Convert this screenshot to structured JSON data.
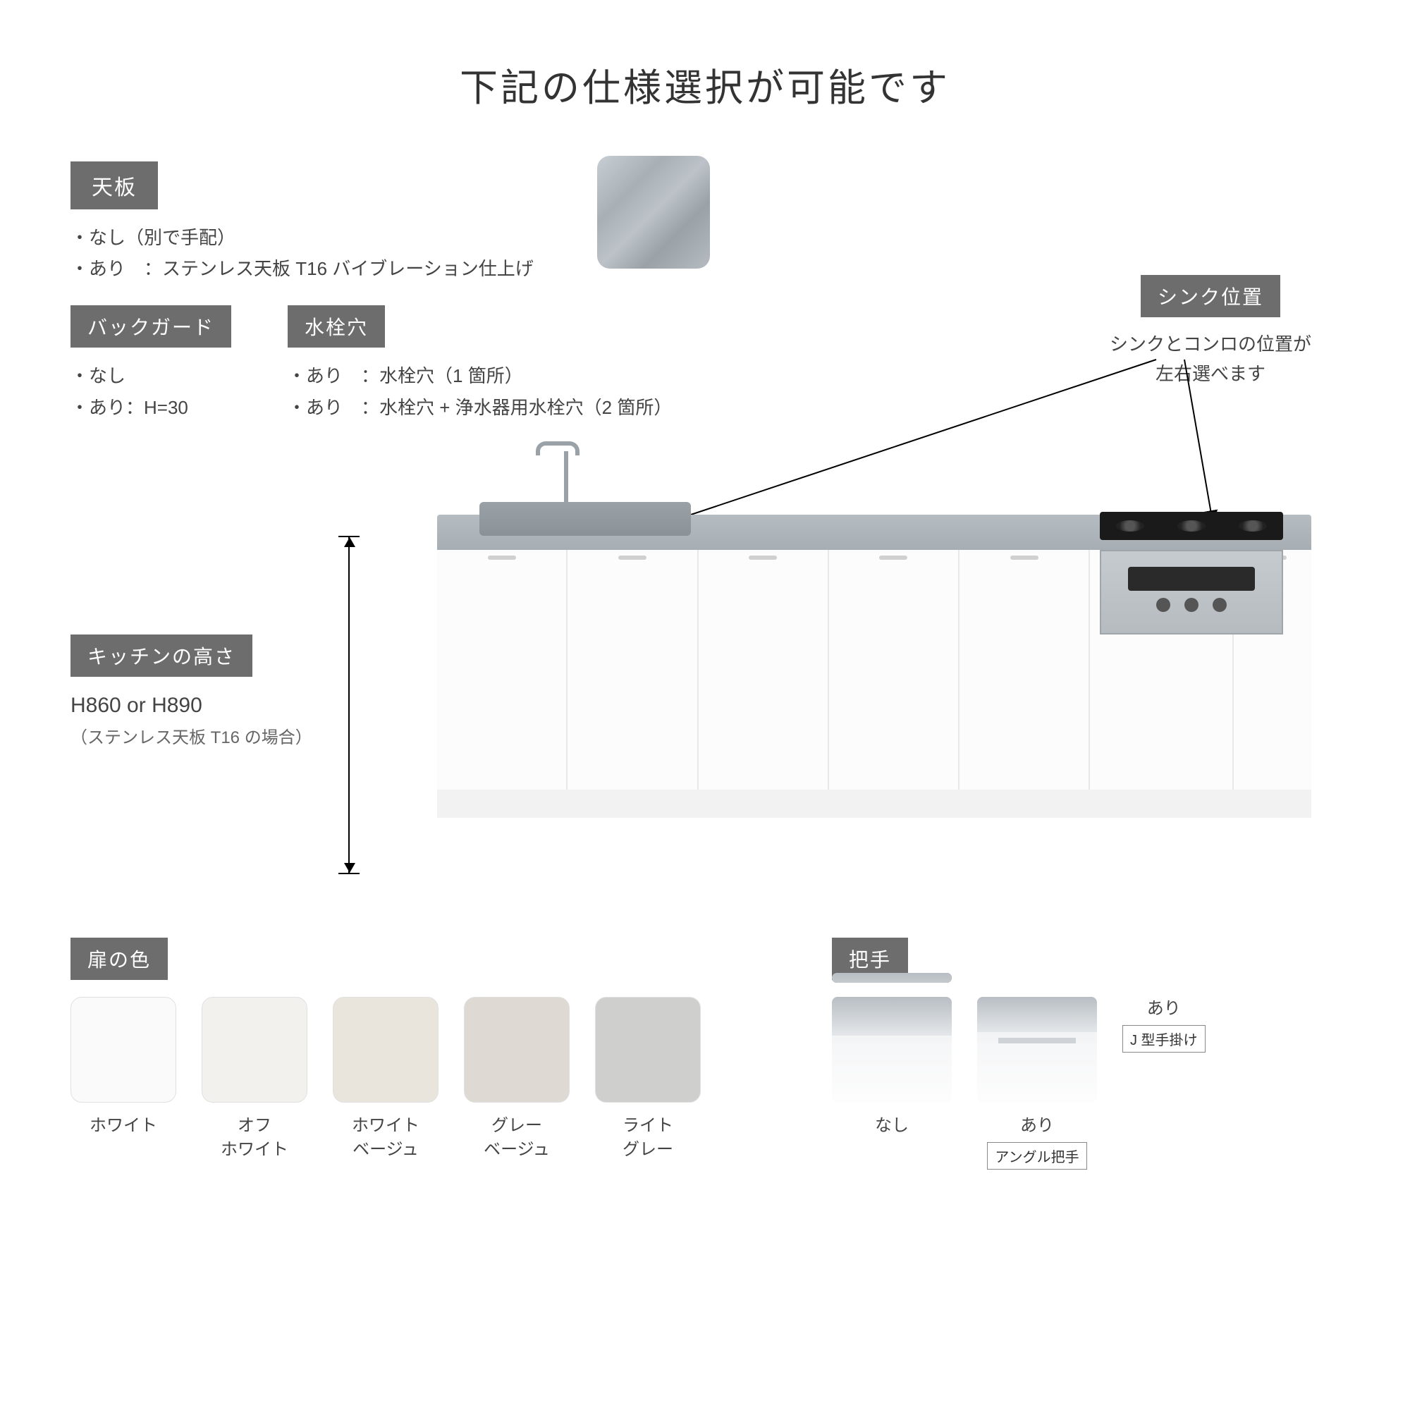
{
  "title": "下記の仕様選択が可能です",
  "countertop": {
    "tag": "天板",
    "options": [
      "なし（別で手配）",
      "あり　：ステンレス天板 T16 バイブレーション仕上げ"
    ],
    "swatch_gradient": [
      "#c8ced3",
      "#a8b0b6",
      "#bcc2c8",
      "#9aa2a8",
      "#b5bbc1"
    ]
  },
  "backguard": {
    "tag": "バックガード",
    "options": [
      "なし",
      "あり：H=30"
    ]
  },
  "faucet_hole": {
    "tag": "水栓穴",
    "options": [
      "あり　：水栓穴（1 箇所）",
      "あり　：水栓穴 + 浄水器用水栓穴（2 箇所）"
    ]
  },
  "sink_position": {
    "tag": "シンク位置",
    "desc_line1": "シンクとコンロの位置が",
    "desc_line2": "左右選べます"
  },
  "kitchen_height": {
    "tag": "キッチンの高さ",
    "value": "H860 or H890",
    "note": "（ステンレス天板 T16 の場合）"
  },
  "door_color": {
    "tag": "扉の色",
    "swatches": [
      {
        "label_line1": "ホワイト",
        "label_line2": "",
        "hex": "#fafafa"
      },
      {
        "label_line1": "オフ",
        "label_line2": "ホワイト",
        "hex": "#f3f1ee"
      },
      {
        "label_line1": "ホワイト",
        "label_line2": "ベージュ",
        "hex": "#e9e5dd"
      },
      {
        "label_line1": "グレー",
        "label_line2": "ベージュ",
        "hex": "#dedad3"
      },
      {
        "label_line1": "ライト",
        "label_line2": "グレー",
        "hex": "#cfcfcd"
      }
    ]
  },
  "handle": {
    "tag": "把手",
    "options": [
      {
        "variant": "none",
        "label": "なし",
        "sublabel": ""
      },
      {
        "variant": "angle",
        "label": "あり",
        "sublabel": "アングル把手"
      },
      {
        "variant": "j",
        "label": "あり",
        "sublabel": "J 型手掛け"
      }
    ]
  },
  "colors": {
    "tag_bg": "#6d6d6d",
    "tag_fg": "#ffffff",
    "text": "#444444",
    "muted": "#666666",
    "border": "#888888",
    "steel": "#b5bcc2",
    "cabinet": "#fcfcfc"
  }
}
